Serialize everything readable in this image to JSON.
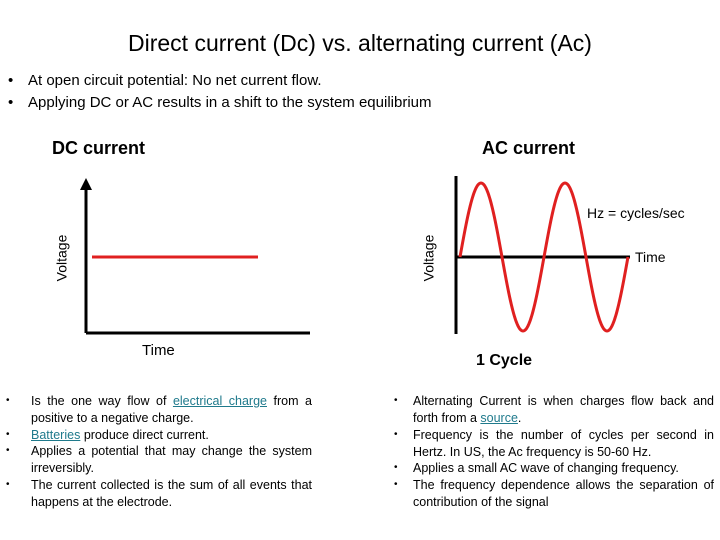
{
  "title": "Direct current (Dc) vs. alternating current (Ac)",
  "top_bullets": [
    "At open circuit potential: No net current flow.",
    "Applying DC or AC results in a shift to the system equilibrium"
  ],
  "bullet_symbol": "•",
  "dc": {
    "heading": "DC current",
    "ylabel": "Voltage",
    "xlabel": "Time",
    "line_color": "#e02020",
    "bullets": {
      "b1_pre": "Is the one way flow of ",
      "b1_link": "electrical charge",
      "b1_post": " from a positive to a negative charge.",
      "b2_link": "Batteries",
      "b2_post": " produce direct current.",
      "b3": "Applies a potential that may change the system irreversibly.",
      "b4": "The current collected is the sum of all events that happens at the electrode."
    }
  },
  "ac": {
    "heading": "AC current",
    "ylabel": "Voltage",
    "xlabel": "Time",
    "freq_label": "Hz = cycles/sec",
    "cycle_label": "1 Cycle",
    "wave_color": "#e02020",
    "bullets": {
      "b1_pre": "Alternating Current is when charges flow back and forth from a ",
      "b1_link": "source",
      "b1_post": ".",
      "b2": "Frequency is the number of cycles per second in Hertz. In US, the Ac frequency is 50-60 Hz.",
      "b3": "Applies a small AC wave of changing frequency.",
      "b4": "The frequency dependence allows the separation of contribution of the signal"
    }
  }
}
